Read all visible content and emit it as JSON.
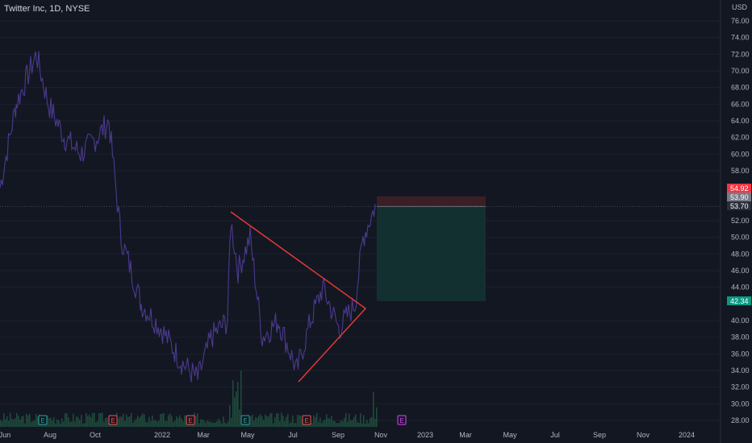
{
  "header": {
    "title": "Twitter Inc, 1D, NYSE"
  },
  "price_axis": {
    "currency": "USD",
    "ticks": [
      "76.00",
      "74.00",
      "72.00",
      "70.00",
      "68.00",
      "66.00",
      "64.00",
      "62.00",
      "60.00",
      "58.00",
      "52.00",
      "50.00",
      "48.00",
      "46.00",
      "44.00",
      "40.00",
      "38.00",
      "36.00",
      "34.00",
      "32.00",
      "30.00",
      "28.00"
    ],
    "tick_values": [
      76,
      74,
      72,
      70,
      68,
      66,
      64,
      62,
      60,
      58,
      52,
      50,
      48,
      46,
      44,
      40,
      38,
      36,
      34,
      32,
      30,
      28
    ]
  },
  "time_axis": {
    "labels": [
      "Jun",
      "Aug",
      "Oct",
      "2022",
      "Mar",
      "May",
      "Jul",
      "Sep",
      "Nov",
      "2023",
      "Mar",
      "May",
      "Jul",
      "Sep",
      "Nov",
      "2024"
    ]
  },
  "price_tags": [
    {
      "label": "54.92",
      "value": 54.92,
      "color": "#f23645"
    },
    {
      "label": "53.90",
      "value": 53.9,
      "color": "#787b86"
    },
    {
      "label": "53.70",
      "value": 53.7,
      "color": "#2a2e39"
    },
    {
      "label": "42.34",
      "value": 42.34,
      "color": "#089981"
    }
  ],
  "earnings_markers": [
    {
      "label": "E",
      "color": "#26a69a"
    },
    {
      "label": "E",
      "color": "#ef5350"
    },
    {
      "label": "E",
      "color": "#ef5350"
    },
    {
      "label": "E",
      "color": "#26a69a"
    },
    {
      "label": "E",
      "color": "#ef5350"
    },
    {
      "label": "E",
      "color": "#e040fb"
    }
  ],
  "position": {
    "entry": 53.7,
    "stop": 54.92,
    "target": 42.34
  },
  "colors": {
    "background": "#131722",
    "price_line": "#4b3a8f",
    "triangle": "#e53935",
    "profit_zone": "#12302f",
    "loss_zone": "#3b1f26",
    "volume": "#1e4d3c"
  },
  "chart_data": {
    "type": "line",
    "title": "Twitter Inc, 1D, NYSE",
    "xlabel": "",
    "ylabel": "USD",
    "ylim": [
      27,
      78
    ],
    "x": [
      "2021-06",
      "2021-07",
      "2021-08",
      "2021-09",
      "2021-10",
      "2021-11",
      "2021-12",
      "2022-01",
      "2022-02",
      "2022-03",
      "2022-04",
      "2022-05",
      "2022-06",
      "2022-07",
      "2022-08",
      "2022-09",
      "2022-10"
    ],
    "series": [
      {
        "values": [
          56,
          68,
          72,
          64,
          62,
          50,
          42,
          39,
          35,
          34,
          51,
          46,
          37,
          34,
          44,
          40,
          54
        ]
      }
    ]
  }
}
